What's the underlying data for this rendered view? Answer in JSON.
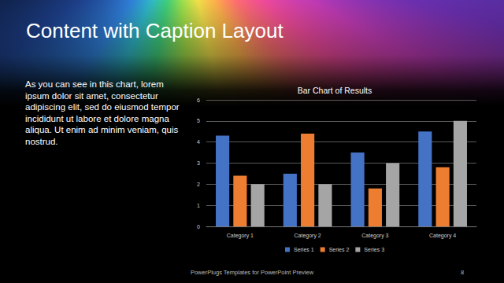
{
  "slide": {
    "title": "Content with Caption Layout",
    "caption": "As you can see in this chart, lorem ipsum dolor sit amet, consectetur adipiscing elit, sed do eiusmod tempor incididunt ut labore et dolore magna aliqua. Ut enim ad minim veniam, quis nostrud.",
    "footer": "PowerPlugs Templates for PowerPoint Preview",
    "page": "8"
  },
  "chart_data": {
    "type": "bar",
    "title": "Bar Chart of Results",
    "categories": [
      "Category 1",
      "Category 2",
      "Category 3",
      "Category 4"
    ],
    "series": [
      {
        "name": "Series 1",
        "color": "#4472c4",
        "values": [
          4.3,
          2.5,
          3.5,
          4.5
        ]
      },
      {
        "name": "Series 2",
        "color": "#ed7d31",
        "values": [
          2.4,
          4.4,
          1.8,
          2.8
        ]
      },
      {
        "name": "Series 3",
        "color": "#a5a5a5",
        "values": [
          2,
          2,
          3,
          5
        ]
      }
    ],
    "ylim": [
      0,
      6
    ],
    "yticks": [
      0,
      1,
      2,
      3,
      4,
      5,
      6
    ],
    "grid": true,
    "legend": "bottom"
  }
}
